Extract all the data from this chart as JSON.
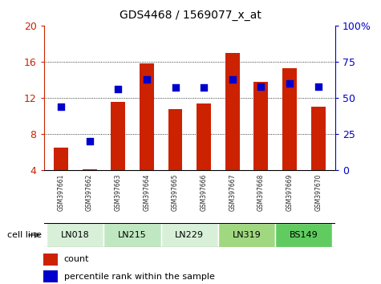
{
  "title": "GDS4468 / 1569077_x_at",
  "samples": [
    "GSM397661",
    "GSM397662",
    "GSM397663",
    "GSM397664",
    "GSM397665",
    "GSM397666",
    "GSM397667",
    "GSM397668",
    "GSM397669",
    "GSM397670"
  ],
  "cell_lines": [
    {
      "name": "LN018",
      "samples": [
        0,
        1
      ],
      "color": "#d8f0d8"
    },
    {
      "name": "LN215",
      "samples": [
        2,
        3
      ],
      "color": "#c0e8c0"
    },
    {
      "name": "LN229",
      "samples": [
        4,
        5
      ],
      "color": "#d8f0d8"
    },
    {
      "name": "LN319",
      "samples": [
        6,
        7
      ],
      "color": "#a0d880"
    },
    {
      "name": "BS149",
      "samples": [
        8,
        9
      ],
      "color": "#60cc60"
    }
  ],
  "count_values": [
    6.5,
    4.1,
    11.6,
    15.8,
    10.8,
    11.4,
    17.0,
    13.8,
    15.3,
    11.0
  ],
  "percentile_values": [
    44,
    20,
    56,
    63,
    57,
    57,
    63,
    58,
    60,
    58
  ],
  "ylim_left": [
    4,
    20
  ],
  "ylim_right": [
    0,
    100
  ],
  "yticks_left": [
    4,
    8,
    12,
    16,
    20
  ],
  "yticks_right": [
    0,
    25,
    50,
    75,
    100
  ],
  "bar_color": "#cc2200",
  "dot_color": "#0000cc",
  "bar_width": 0.5,
  "dot_size": 35,
  "grid_yticks": [
    8,
    12,
    16
  ],
  "axis_label_color_left": "#cc2200",
  "axis_label_color_right": "#0000cc",
  "legend_count_label": "count",
  "legend_pct_label": "percentile rank within the sample",
  "cell_line_label": "cell line",
  "sample_bg_color": "#cccccc",
  "plot_bg_color": "#ffffff",
  "outer_bg_color": "#ffffff"
}
